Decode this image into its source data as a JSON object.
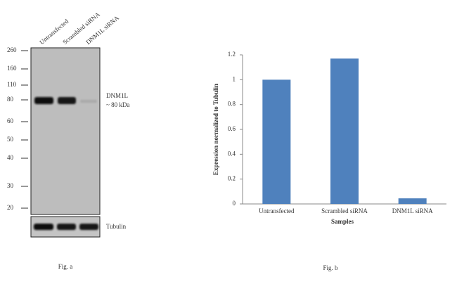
{
  "blot": {
    "lanes": [
      "Untransfected",
      "Scrambled siRNA",
      "DNM1L siRNA"
    ],
    "markers": [
      260,
      160,
      110,
      80,
      60,
      50,
      40,
      30,
      20
    ],
    "band_label": "DNM1L",
    "band_size": "~ 80 kDa",
    "loading_label": "Tubulin",
    "caption": "Fig. a"
  },
  "chart_data": {
    "type": "bar",
    "caption": "Fig. b",
    "categories": [
      "Untransfected",
      "Scrambled siRNA",
      "DNM1L siRNA"
    ],
    "values": [
      1,
      1.17,
      0.045
    ],
    "color": "#4f81bd",
    "ylabel": "Expression  normalized to Tubulin",
    "xlabel": "Samples",
    "ylim": [
      0,
      1.2
    ],
    "yticks": [
      0,
      0.2,
      0.4,
      0.6,
      0.8,
      1,
      1.2
    ],
    "grid": false
  }
}
